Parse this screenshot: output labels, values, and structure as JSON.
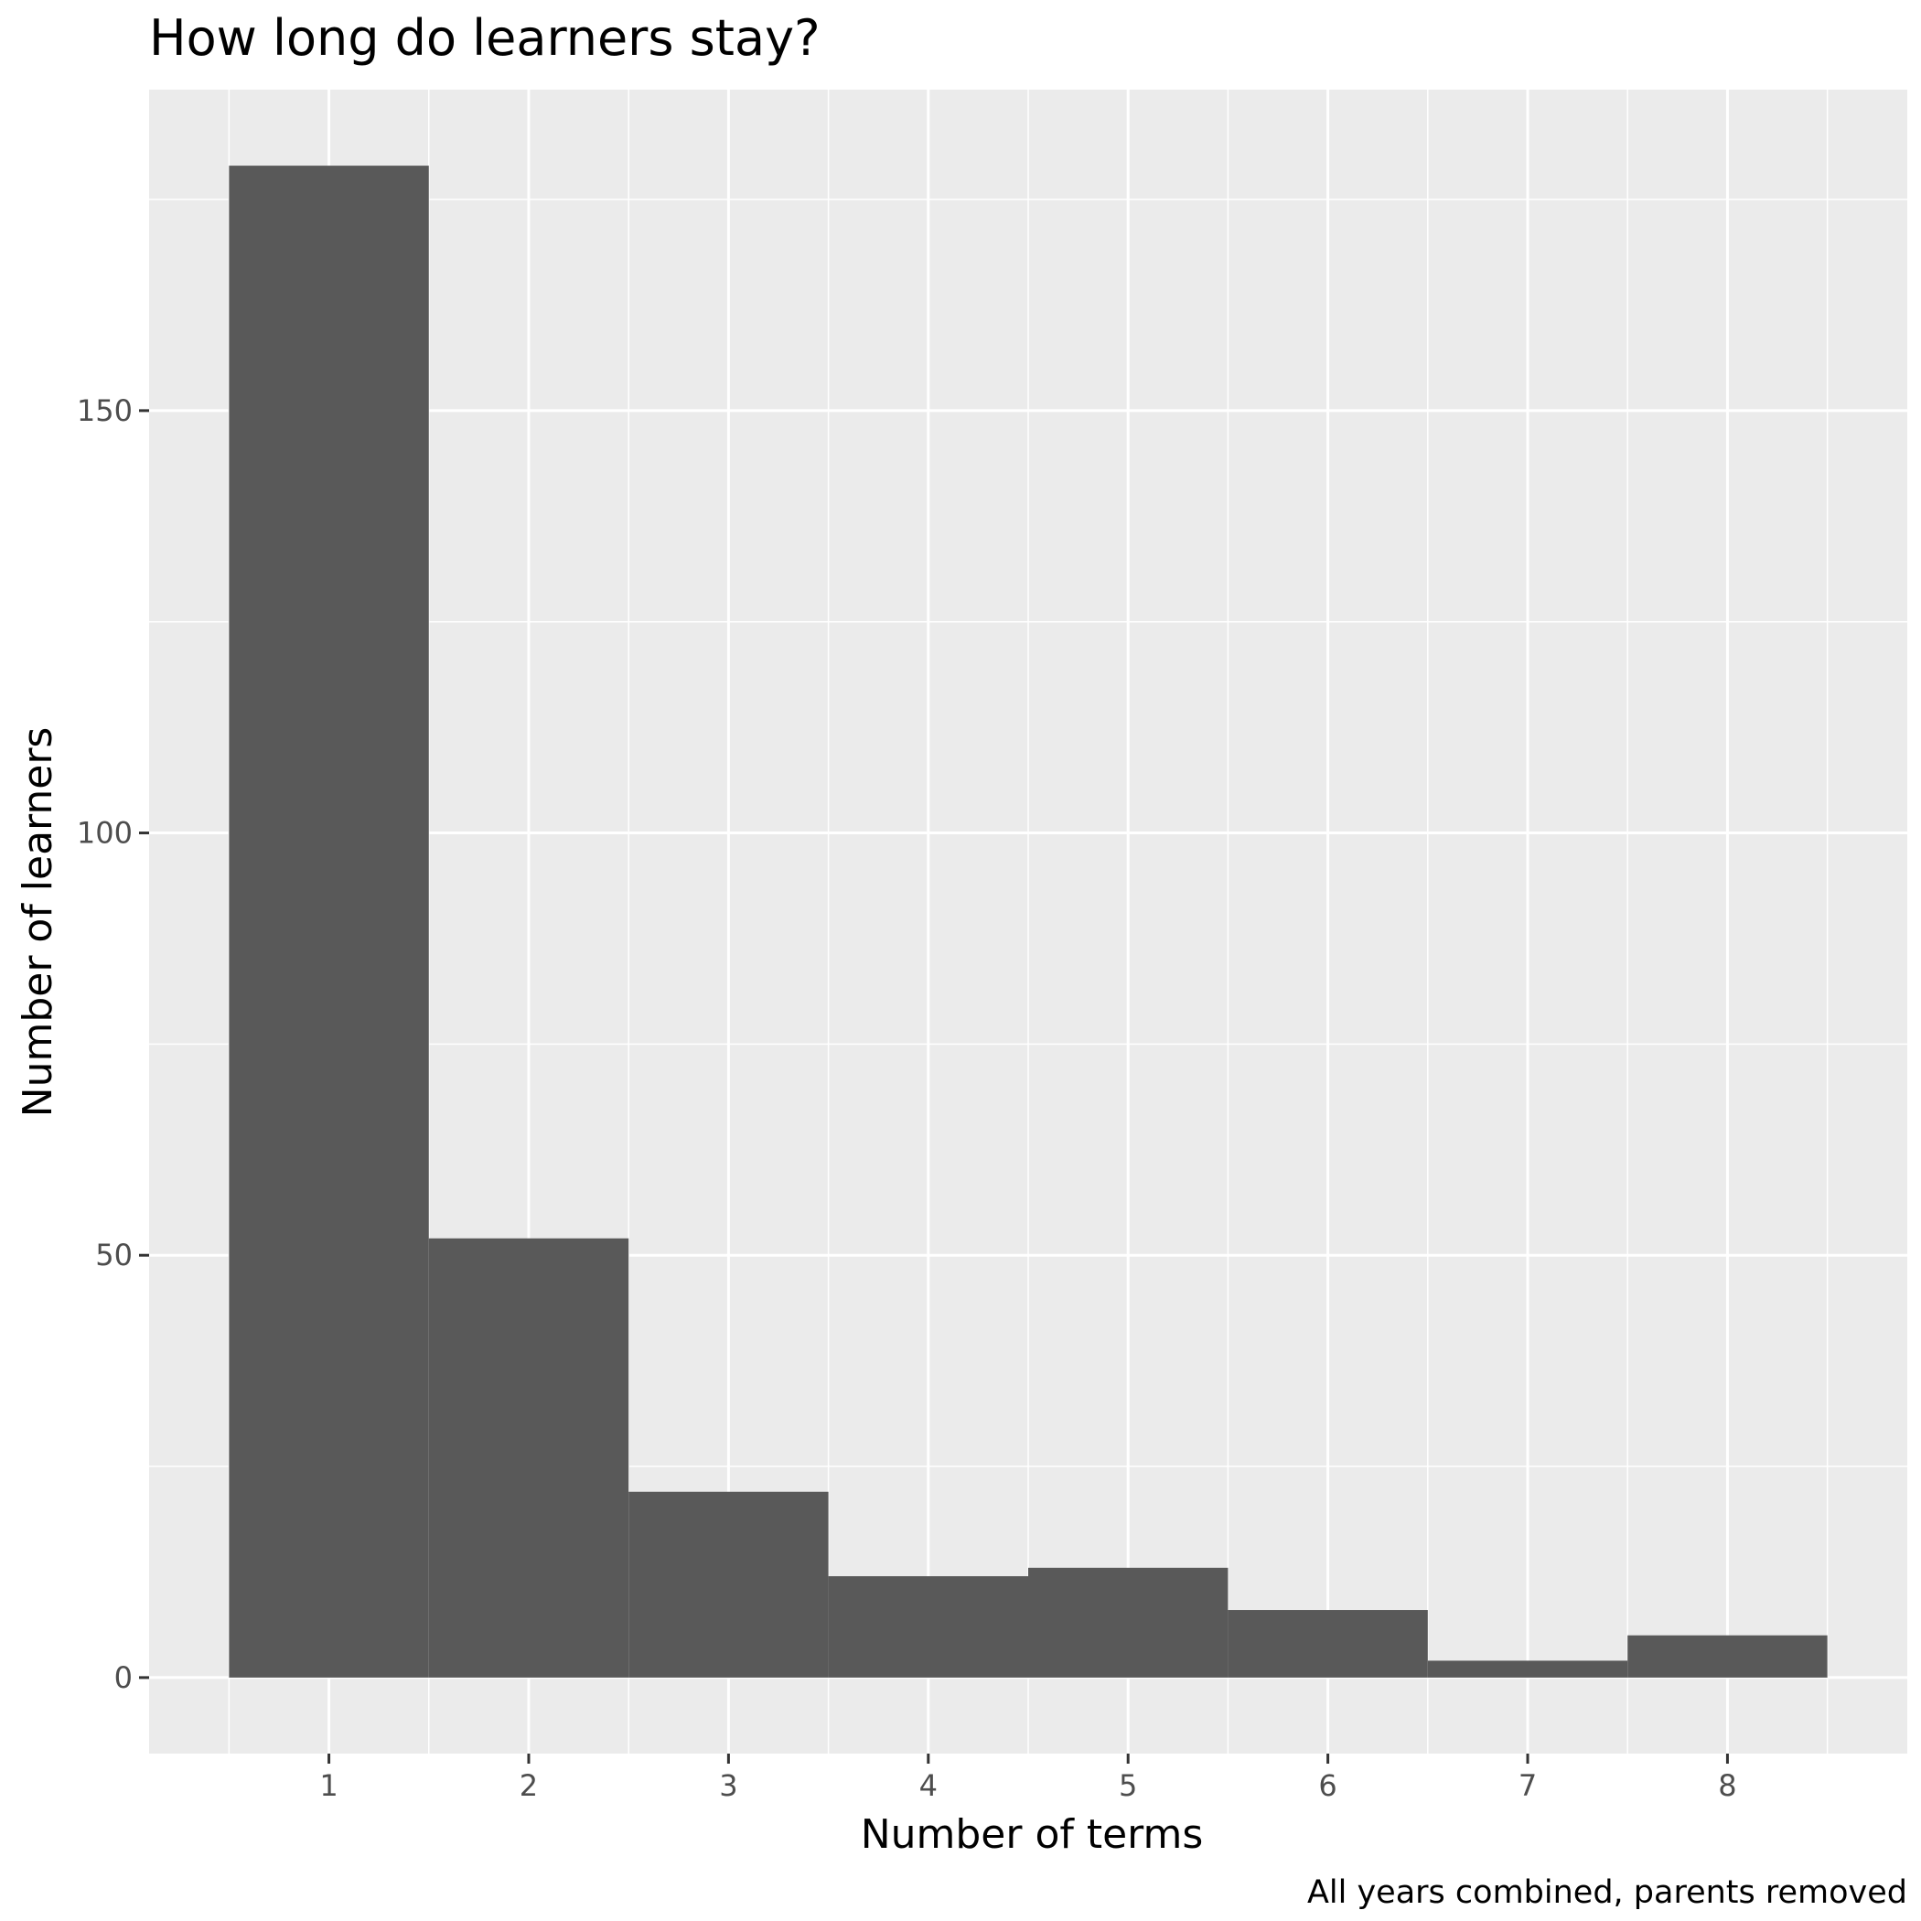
{
  "chart_data": {
    "type": "bar",
    "title": "How long do learners stay?",
    "xlabel": "Number of terms",
    "ylabel": "Number of learners",
    "caption": "All years combined, parents removed",
    "categories": [
      1,
      2,
      3,
      4,
      5,
      6,
      7,
      8
    ],
    "values": [
      179,
      52,
      22,
      12,
      13,
      8,
      2,
      5
    ],
    "xlim": [
      0.1,
      8.9
    ],
    "ylim": [
      -9,
      188
    ],
    "x_ticks": [
      "1",
      "2",
      "3",
      "4",
      "5",
      "6",
      "7",
      "8"
    ],
    "y_ticks": [
      "0",
      "50",
      "100",
      "150"
    ],
    "y_tick_values": [
      0,
      50,
      100,
      150
    ],
    "y_minor_values": [
      25,
      75,
      125,
      175
    ],
    "bin_width": 1,
    "grid": true,
    "legend": "none",
    "colors": {
      "bar_fill": "#595959",
      "panel_background": "#ebebeb",
      "grid": "#ffffff"
    }
  }
}
